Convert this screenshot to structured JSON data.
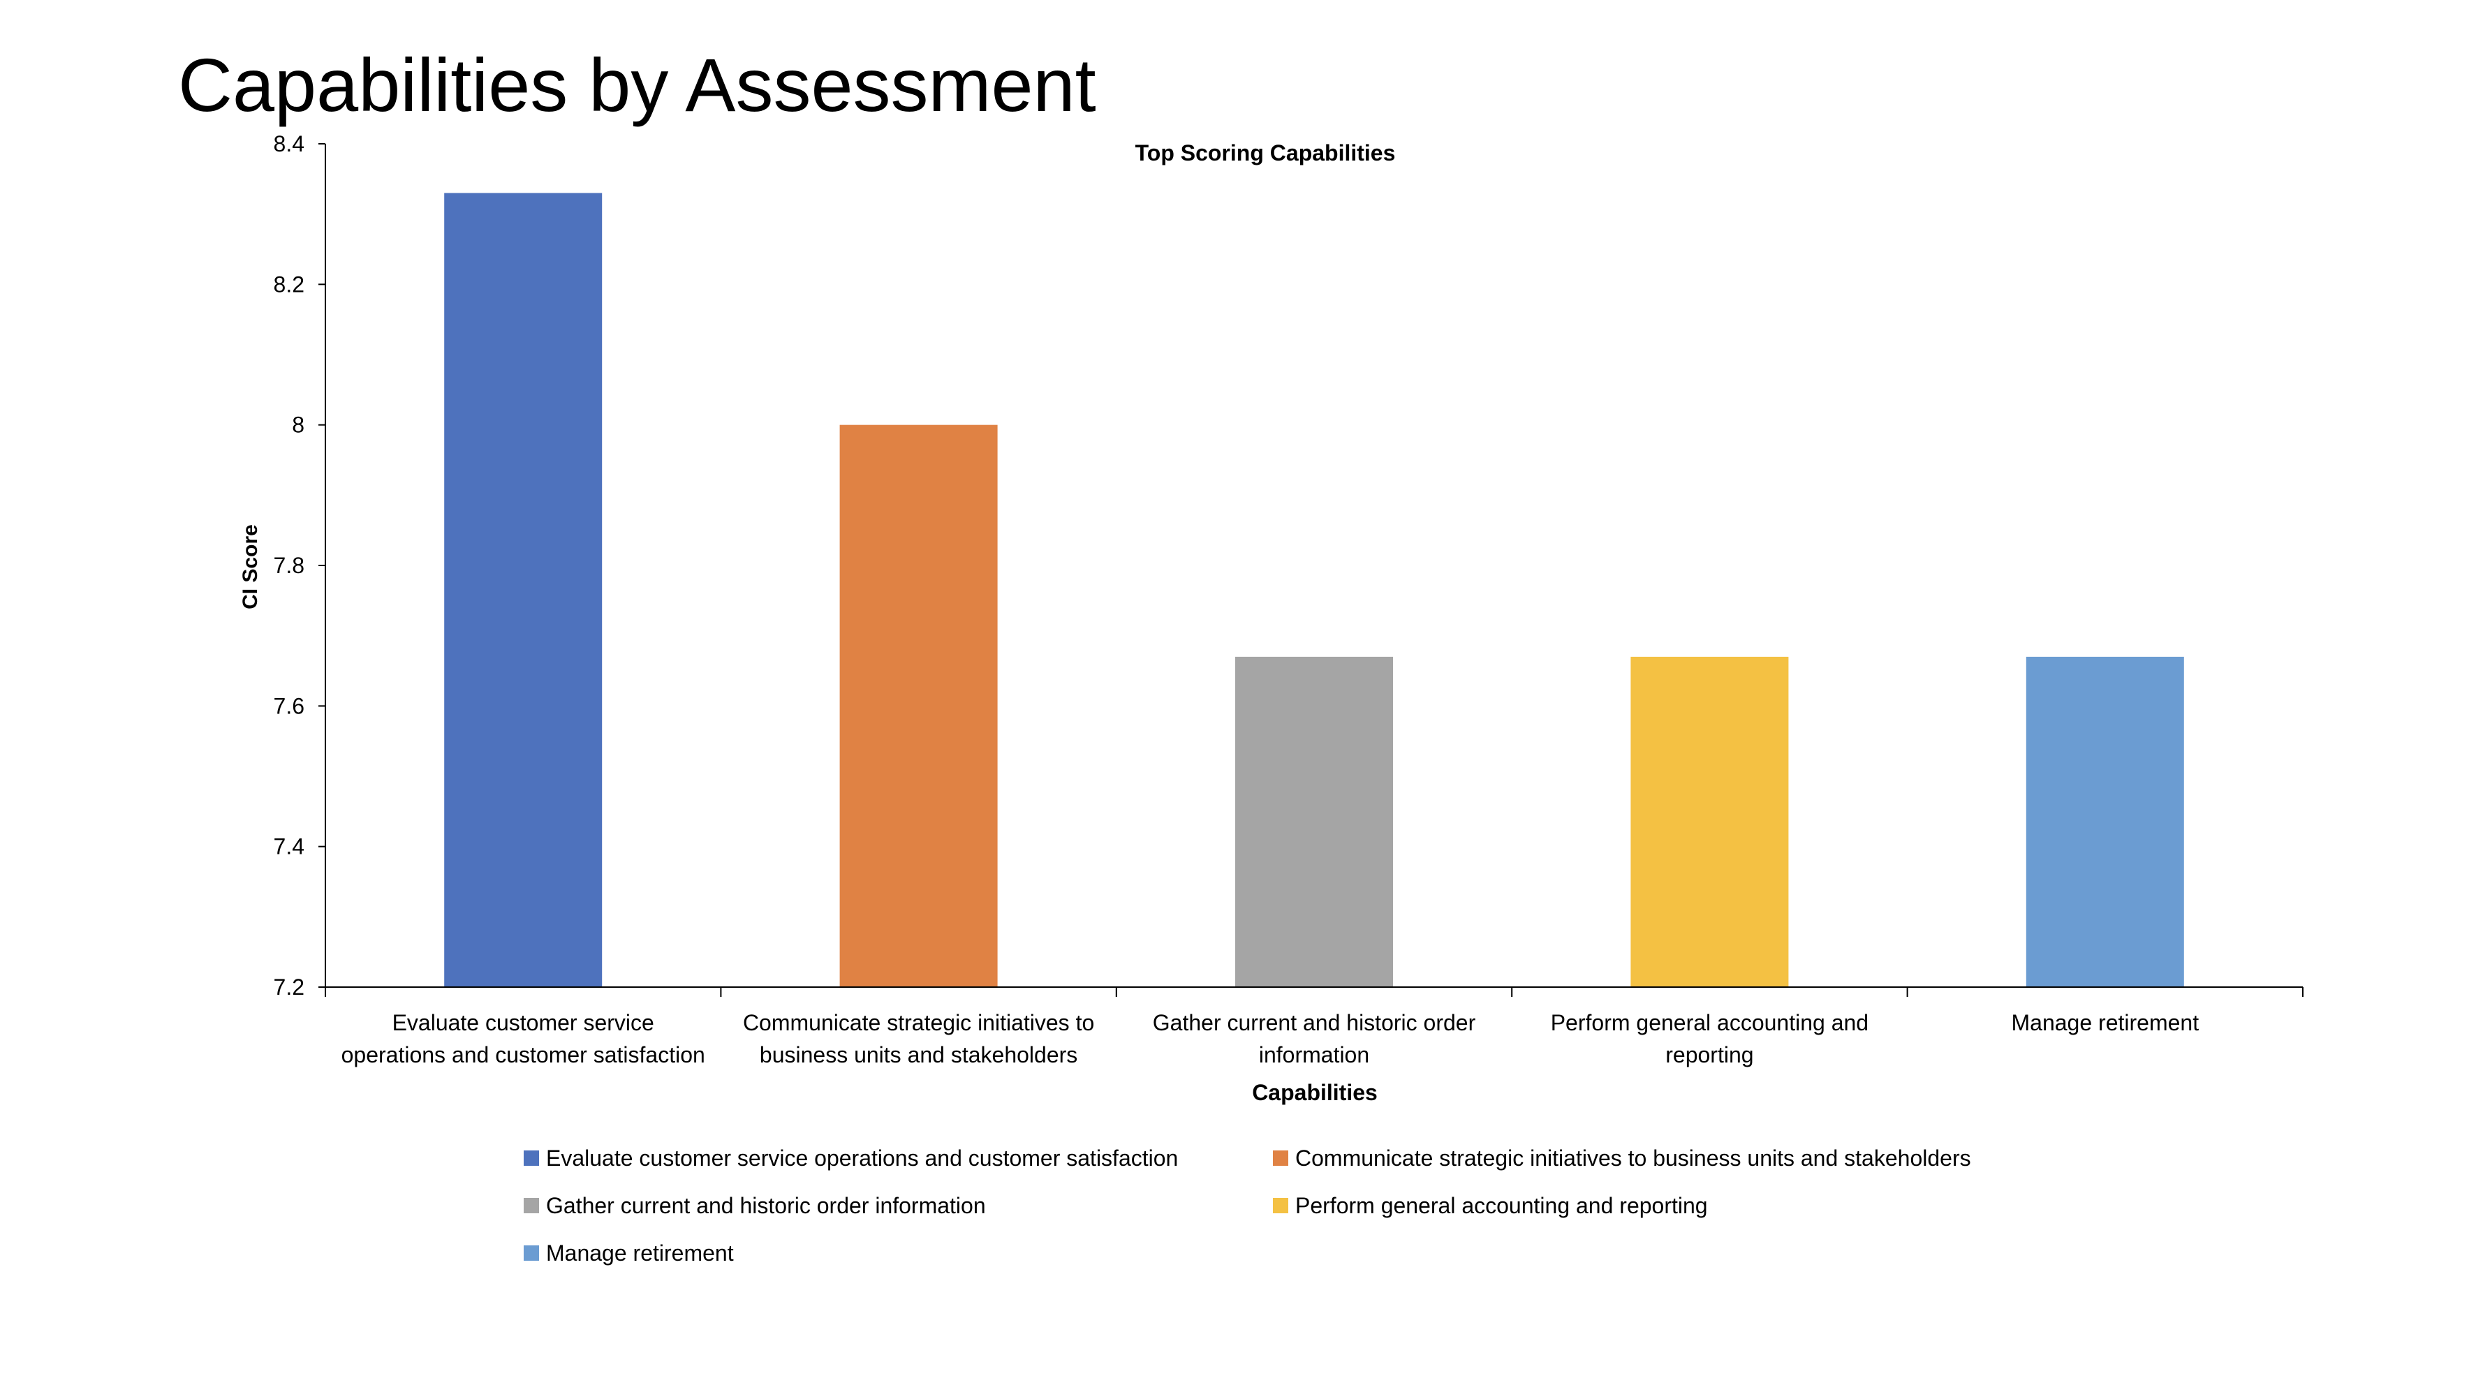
{
  "slide": {
    "title": "Capabilities by Assessment"
  },
  "chart_data": {
    "type": "bar",
    "title": "Top Scoring Capabilities",
    "xlabel": "Capabilities",
    "ylabel": "CI Score",
    "ylim": [
      7.2,
      8.4
    ],
    "yticks": [
      7.2,
      7.4,
      7.6,
      7.8,
      8,
      8.2,
      8.4
    ],
    "ytick_labels": [
      "7.2",
      "7.4",
      "7.6",
      "7.8",
      "8",
      "8.2",
      "8.4"
    ],
    "grid": false,
    "legend_position": "bottom",
    "categories": [
      [
        "Evaluate customer service",
        "operations and customer satisfaction"
      ],
      [
        "Communicate strategic initiatives to",
        "business units and stakeholders"
      ],
      [
        "Gather current and historic order",
        "information"
      ],
      [
        "Perform general accounting and",
        "reporting"
      ],
      [
        "Manage retirement"
      ]
    ],
    "values": [
      8.33,
      8.0,
      7.67,
      7.67,
      7.67
    ],
    "colors": [
      "#4e72bd",
      "#e08244",
      "#a5a5a5",
      "#f4c143",
      "#6b9cd2"
    ],
    "legend": [
      "Evaluate customer service operations and customer satisfaction",
      "Communicate strategic initiatives to business units and stakeholders",
      "Gather current and historic order information",
      "Perform general accounting and reporting",
      "Manage retirement"
    ]
  }
}
